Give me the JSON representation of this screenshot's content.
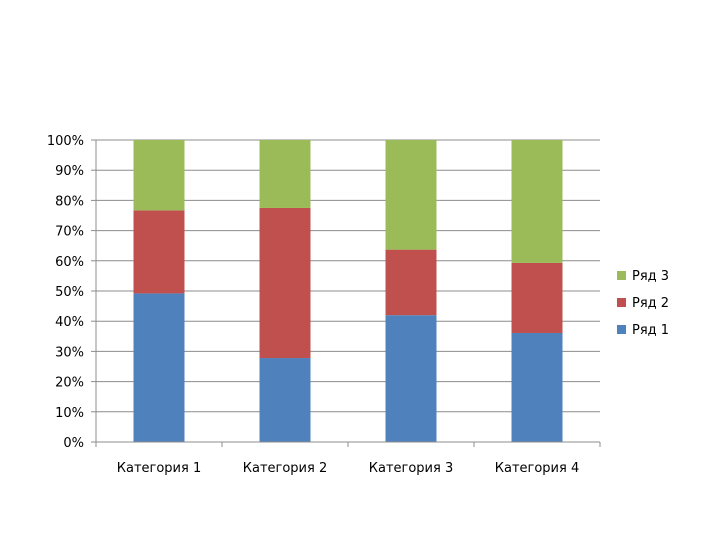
{
  "chart_data": {
    "type": "bar",
    "stacked": true,
    "percent_stacked": true,
    "categories": [
      "Категория 1",
      "Категория 2",
      "Категория 3",
      "Категория 4"
    ],
    "series": [
      {
        "name": "Ряд 1",
        "color": "#4F81BD",
        "values": [
          49.2,
          27.8,
          42.0,
          36.1
        ]
      },
      {
        "name": "Ряд 2",
        "color": "#C0504D",
        "values": [
          27.5,
          49.7,
          21.7,
          23.2
        ]
      },
      {
        "name": "Ряд 3",
        "color": "#9BBB59",
        "values": [
          23.3,
          22.5,
          36.3,
          40.7
        ]
      }
    ],
    "y_ticks": [
      "0%",
      "10%",
      "20%",
      "30%",
      "40%",
      "50%",
      "60%",
      "70%",
      "80%",
      "90%",
      "100%"
    ],
    "ylim": [
      0,
      100
    ],
    "grid": true,
    "legend_position": "right"
  }
}
